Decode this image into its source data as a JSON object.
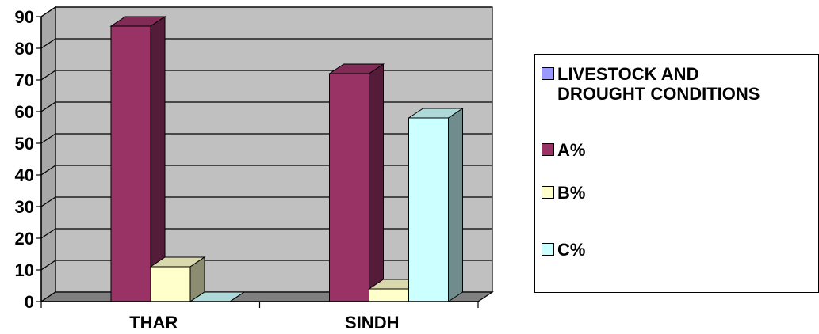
{
  "chart_data": {
    "type": "bar",
    "categories": [
      "THAR",
      "SINDH"
    ],
    "series": [
      {
        "name": "LIVESTOCK AND\nDROUGHT CONDITIONS",
        "values": [
          0,
          0
        ],
        "color": "#9999ff"
      },
      {
        "name": "A%",
        "values": [
          87,
          72
        ],
        "color": "#993366"
      },
      {
        "name": "B%",
        "values": [
          11,
          4
        ],
        "color": "#ffffcc"
      },
      {
        "name": "C%",
        "values": [
          0,
          58
        ],
        "color": "#ccffff"
      }
    ],
    "ylim": [
      0,
      90
    ],
    "yticks": [
      "0",
      "10",
      "20",
      "30",
      "40",
      "50",
      "60",
      "70",
      "80",
      "90"
    ],
    "grid": true,
    "legend_position": "right",
    "plot_background": "#c0c0c0"
  }
}
